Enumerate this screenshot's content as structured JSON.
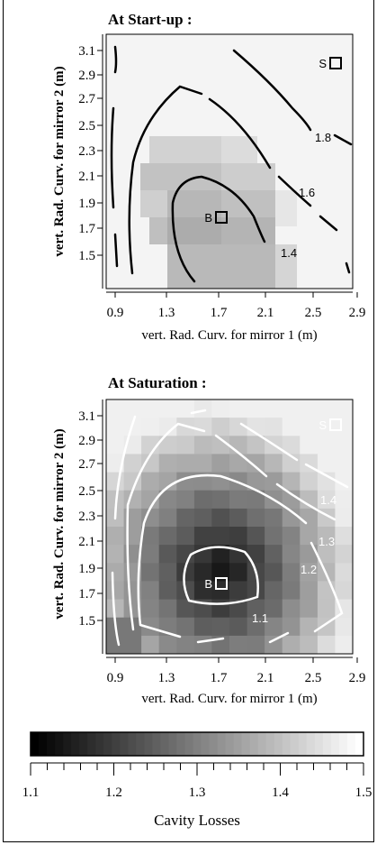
{
  "chart_data": [
    {
      "type": "heatmap",
      "title": "At Start-up :",
      "xlabel": "vert. Rad. Curv.  for mirror 1 (m)",
      "ylabel": "vert. Rad. Curv.  for mirror 2 (m)",
      "x_ticks": [
        "0.9",
        "1.3",
        "1.7",
        "2.1",
        "2.5",
        "2.9"
      ],
      "y_ticks": [
        "3.1",
        "2.9",
        "2.7",
        "2.5",
        "2.3",
        "2.1",
        "1.9",
        "1.7",
        "1.5"
      ],
      "xlim": [
        0.9,
        3.1
      ],
      "ylim": [
        1.5,
        3.1
      ],
      "grid": false,
      "contour_labels": [
        "1.8",
        "1.6",
        "1.4"
      ],
      "markers": [
        {
          "label": "S",
          "x": 2.98,
          "y": 3.0
        },
        {
          "label": "B",
          "x": 1.92,
          "y": 1.9
        }
      ]
    },
    {
      "type": "heatmap",
      "title": "At Saturation :",
      "xlabel": "vert. Rad. Curv.  for mirror 1 (m)",
      "ylabel": "vert. Rad. Curv.  for mirror 2 (m)",
      "x_ticks": [
        "0.9",
        "1.3",
        "1.7",
        "2.1",
        "2.5",
        "2.9"
      ],
      "y_ticks": [
        "3.1",
        "2.9",
        "2.7",
        "2.5",
        "2.3",
        "2.1",
        "1.9",
        "1.7",
        "1.5"
      ],
      "xlim": [
        0.9,
        3.1
      ],
      "ylim": [
        1.5,
        3.1
      ],
      "grid": false,
      "contour_labels": [
        "1.4",
        "1.3",
        "1.2",
        "1.1"
      ],
      "markers": [
        {
          "label": "S",
          "x": 2.98,
          "y": 3.0
        },
        {
          "label": "B",
          "x": 1.92,
          "y": 1.9
        }
      ]
    }
  ],
  "colorbar": {
    "label": "Cavity Losses",
    "ticks": [
      "1.1",
      "1.2",
      "1.3",
      "1.4",
      "1.5"
    ],
    "range": [
      1.1,
      1.5
    ]
  }
}
